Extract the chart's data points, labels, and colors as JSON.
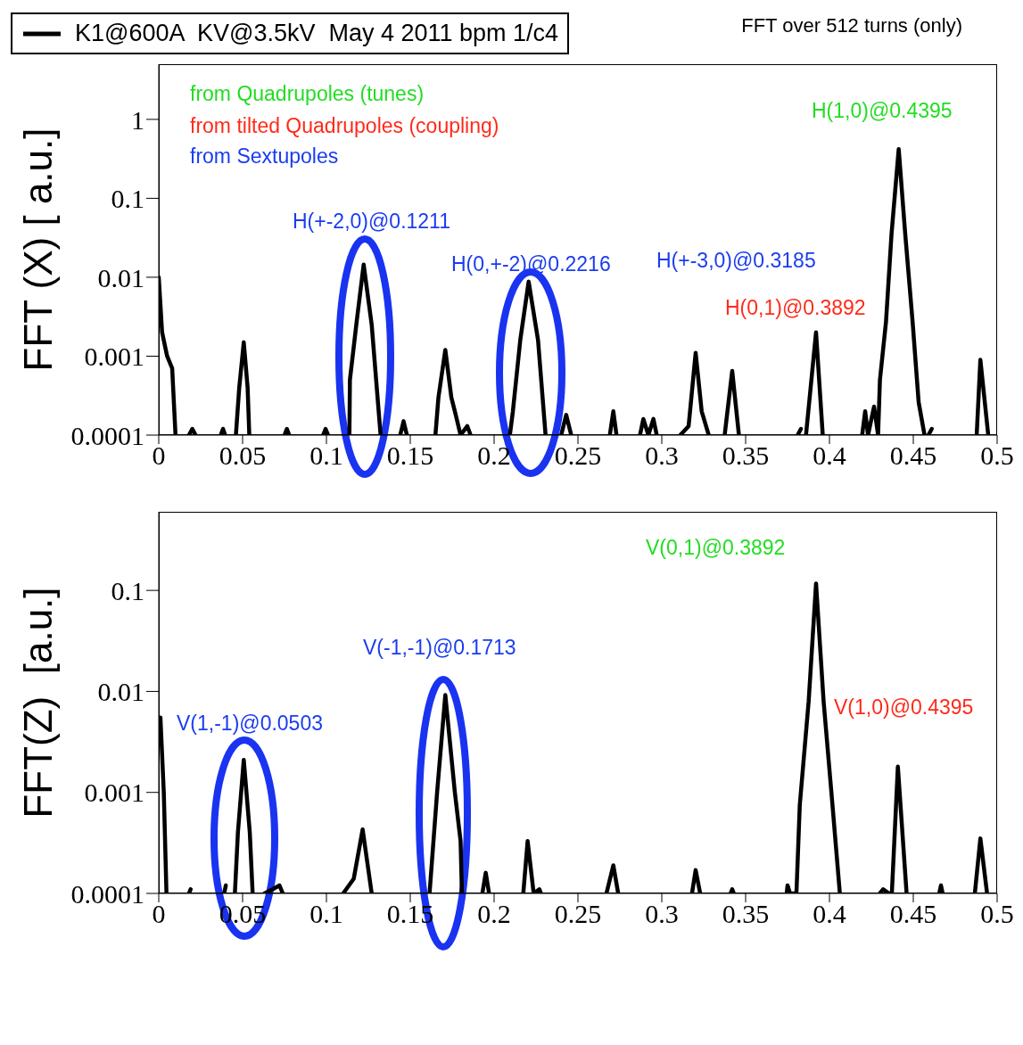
{
  "chart_data": [
    {
      "type": "line",
      "title": "FFT over 512 turns (only)",
      "ylabel": "FFT (X) [ a.u.]",
      "xlim": [
        0,
        0.5
      ],
      "xticks": [
        0,
        0.05,
        0.1,
        0.15,
        0.2,
        0.25,
        0.3,
        0.35,
        0.4,
        0.45,
        0.5
      ],
      "ylim": [
        0.0001,
        5
      ],
      "yticks": [
        0.0001,
        0.001,
        0.01,
        0.1,
        1
      ],
      "log": true,
      "legend": "top left",
      "line_style": "solid",
      "annotations": [
        "from Quadrupoles (tunes)",
        "from tilted Quadrupoles (coupling)",
        "from Sextupoles",
        "H(+-2,0)@0.1211",
        "H(0,+-2)@0.2216",
        "H(+-3,0)@0.3185",
        "H(0,1)@0.3892",
        "H(1,0)@0.4395"
      ],
      "series": [
        {
          "name": "K1@600A  KV@3.5kV  May 4 2011 bpm 1/c4",
          "color": "#000000",
          "x": [
            0,
            0.002,
            0.005,
            0.008,
            0.01,
            0.014,
            0.018,
            0.02,
            0.022,
            0.03,
            0.037,
            0.0383,
            0.0396,
            0.042,
            0.046,
            0.048,
            0.0507,
            0.053,
            0.054,
            0.065,
            0.075,
            0.0764,
            0.0778,
            0.088,
            0.098,
            0.0995,
            0.101,
            0.107,
            0.1137,
            0.114,
            0.118,
            0.1222,
            0.127,
            0.1323,
            0.138,
            0.144,
            0.146,
            0.148,
            0.156,
            0.165,
            0.1668,
            0.1709,
            0.1745,
            0.1766,
            0.18,
            0.184,
            0.186,
            0.2,
            0.2094,
            0.2112,
            0.2156,
            0.2206,
            0.2262,
            0.2307,
            0.235,
            0.24,
            0.243,
            0.246,
            0.258,
            0.269,
            0.2711,
            0.273,
            0.277,
            0.287,
            0.289,
            0.292,
            0.295,
            0.297,
            0.304,
            0.311,
            0.316,
            0.3202,
            0.3238,
            0.328,
            0.333,
            0.3375,
            0.342,
            0.346,
            0.36,
            0.381,
            0.383,
            0.3845,
            0.386,
            0.392,
            0.396,
            0.405,
            0.4195,
            0.4213,
            0.423,
            0.4266,
            0.429,
            0.4301,
            0.4337,
            0.437,
            0.4413,
            0.4452,
            0.4496,
            0.4532,
            0.4567,
            0.458,
            0.459,
            0.461,
            0.47,
            0.4878,
            0.49,
            0.4947
          ],
          "values": [
            0.01,
            0.002,
            0.001,
            0.0007,
            0.0001,
            null,
            0.0001,
            0.00012,
            0.0001,
            null,
            0.0001,
            0.00012,
            0.0001,
            null,
            0.0001,
            0.0004,
            0.0015,
            0.0004,
            0.0001,
            null,
            0.0001,
            0.00012,
            0.0001,
            null,
            0.0001,
            0.00012,
            0.0001,
            null,
            0.0001,
            0.0005,
            0.0027,
            0.0145,
            0.0025,
            0.0001,
            null,
            0.0001,
            0.00015,
            0.0001,
            null,
            0.0001,
            0.0003,
            0.0012,
            0.0003,
            0.0002,
            0.0001,
            0.00013,
            0.0001,
            null,
            0.0001,
            0.0002,
            0.0016,
            0.0088,
            0.0016,
            0.0001,
            null,
            0.0001,
            0.00018,
            0.0001,
            null,
            0.0001,
            0.0002,
            0.0001,
            null,
            0.0001,
            0.00016,
            0.0001,
            0.00016,
            0.0001,
            null,
            0.0001,
            0.00013,
            0.0011,
            0.0002,
            0.0001,
            null,
            0.0001,
            0.00065,
            0.0001,
            null,
            0.0001,
            0.00012,
            null,
            0.0001,
            0.002,
            0.0001,
            null,
            0.0001,
            0.0002,
            0.0001,
            0.00023,
            0.0001,
            0.0005,
            0.0027,
            0.035,
            0.42,
            0.035,
            0.0027,
            0.00026,
            0.0001,
            null,
            0.0001,
            0.00012,
            null,
            0.0001,
            0.0009,
            0.0001
          ]
        }
      ]
    },
    {
      "type": "line",
      "ylabel": "FFT(Z)  [a.u.]",
      "xlim": [
        0,
        0.5
      ],
      "xticks": [
        0,
        0.05,
        0.1,
        0.15,
        0.2,
        0.25,
        0.3,
        0.35,
        0.4,
        0.45,
        0.5
      ],
      "ylim": [
        0.0001,
        0.6
      ],
      "yticks": [
        0.0001,
        0.001,
        0.01,
        0.1
      ],
      "log": true,
      "line_style": "solid",
      "annotations": [
        "V(0,1)@0.3892",
        "V(-1,-1)@0.1713",
        "V(1,-1)@0.0503",
        "V(1,0)@0.4395"
      ],
      "series": [
        {
          "color": "#000000",
          "x": [
            0,
            0.001,
            0.003,
            0.0046,
            0.01,
            0.018,
            0.019,
            0.025,
            0.039,
            0.04,
            0.042,
            0.0454,
            0.0472,
            0.0507,
            0.0543,
            0.056,
            0.06,
            0.063,
            0.068,
            0.072,
            0.074,
            0.09,
            0.11,
            0.1163,
            0.1216,
            0.127,
            0.14,
            0.1615,
            0.166,
            0.1709,
            0.1766,
            0.18,
            0.1808,
            0.187,
            0.193,
            0.195,
            0.197,
            0.205,
            0.2174,
            0.22,
            0.2236,
            0.227,
            0.228,
            0.245,
            0.267,
            0.2711,
            0.274,
            0.29,
            0.318,
            0.3202,
            0.3229,
            0.33,
            0.341,
            0.342,
            0.343,
            0.36,
            0.3745,
            0.375,
            0.3765,
            0.3803,
            0.3823,
            0.3876,
            0.392,
            0.3965,
            0.4018,
            0.4062,
            0.42,
            0.43,
            0.432,
            0.4355,
            0.4372,
            0.4408,
            0.446,
            0.455,
            0.4655,
            0.4665,
            0.4675,
            0.478,
            0.4867,
            0.49,
            0.494
          ],
          "values": [
            0.0055,
            0.0055,
            0.001,
            0.0001,
            null,
            0.0001,
            0.00011,
            null,
            0.0001,
            0.00012,
            null,
            0.0001,
            0.0004,
            0.0021,
            0.0004,
            0.0001,
            null,
            0.0001,
            0.00011,
            0.00012,
            0.0001,
            null,
            0.0001,
            0.00014,
            0.00043,
            0.0001,
            null,
            0.0001,
            0.001,
            0.0092,
            0.001,
            0.00033,
            0.0001,
            null,
            0.0001,
            0.00016,
            0.0001,
            null,
            0.0001,
            0.00033,
            0.0001,
            0.00011,
            0.0001,
            null,
            0.0001,
            0.00019,
            0.0001,
            null,
            0.0001,
            0.00017,
            0.0001,
            null,
            0.0001,
            0.00011,
            0.0001,
            null,
            0.0001,
            0.00012,
            0.0001,
            0.0001,
            0.00075,
            0.008,
            0.117,
            0.008,
            0.00075,
            0.0001,
            null,
            0.0001,
            0.00011,
            0.0001,
            0.0001,
            0.0018,
            0.0001,
            null,
            0.0001,
            0.00012,
            0.0001,
            null,
            0.0001,
            0.00035,
            0.0001
          ]
        }
      ]
    }
  ]
}
